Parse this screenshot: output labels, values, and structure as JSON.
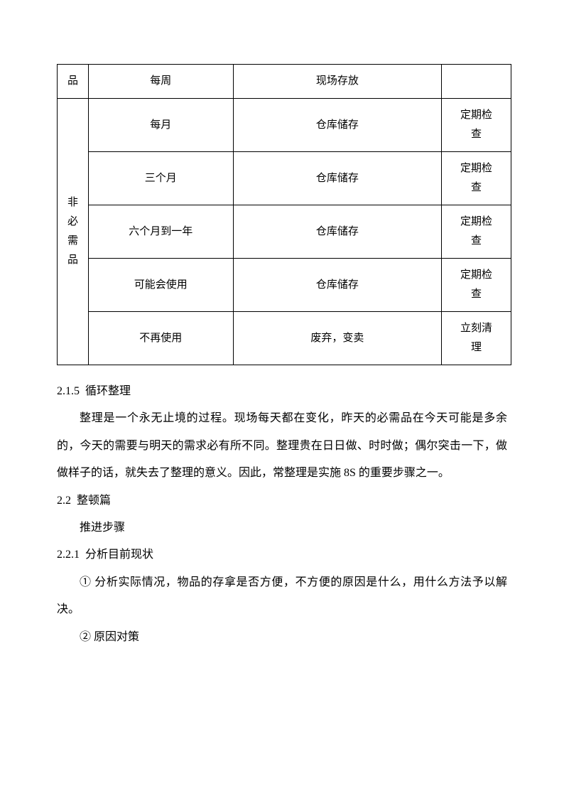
{
  "table": {
    "row1": {
      "col1": "品",
      "col2": "每周",
      "col3": "现场存放",
      "col4": ""
    },
    "mergedLabel": "非\n必\n需\n品",
    "rows": [
      {
        "c2": "每月",
        "c3": "仓库储存",
        "c4": "定期检查"
      },
      {
        "c2": "三个月",
        "c3": "仓库储存",
        "c4": "定期检查"
      },
      {
        "c2": "六个月到一年",
        "c3": "仓库储存",
        "c4": "定期检查"
      },
      {
        "c2": "可能会使用",
        "c3": "仓库储存",
        "c4": "定期检查"
      },
      {
        "c2": "不再使用",
        "c3": "废弃，变卖",
        "c4": "立刻清理"
      }
    ]
  },
  "sections": {
    "s215_num": "2.1.5",
    "s215_title": "循环整理",
    "s215_body": "整理是一个永无止境的过程。现场每天都在变化，昨天的必需品在今天可能是多余的，今天的需要与明天的需求必有所不同。整理贵在日日做、时时做；偶尔突击一下，做做样子的话，就失去了整理的意义。因此，常整理是实施 8S 的重要步骤之一。",
    "s22_num": "2.2",
    "s22_title": "整顿篇",
    "s22_sub": "推进步骤",
    "s221_num": "2.2.1",
    "s221_title": "分析目前现状",
    "s221_item1": "① 分析实际情况，物品的存拿是否方便，不方便的原因是什么，用什么方法予以解决。",
    "s221_item2": "② 原因对策"
  }
}
